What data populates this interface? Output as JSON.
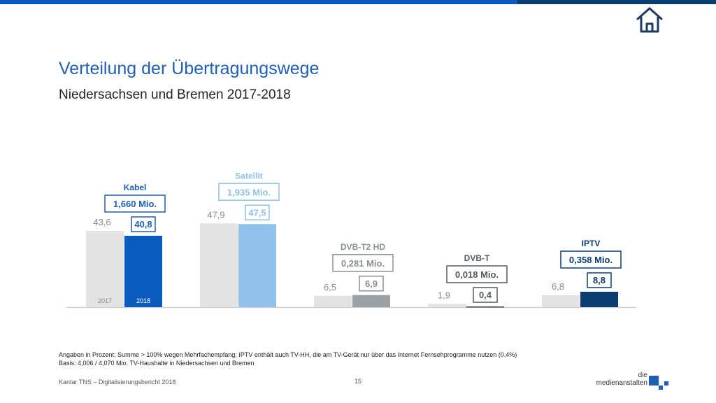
{
  "header": {
    "title": "Verteilung der Übertragungswege",
    "subtitle": "Niedersachsen und Bremen 2017-2018"
  },
  "chart_data": {
    "type": "bar",
    "categories": [
      "Kabel",
      "Satellit",
      "DVB-T2 HD",
      "DVB-T",
      "IPTV"
    ],
    "households": [
      "1,660 Mio.",
      "1,935 Mio.",
      "0,281 Mio.",
      "0,018 Mio.",
      "0,358 Mio."
    ],
    "series": [
      {
        "name": "2017",
        "values": [
          43.6,
          47.9,
          6.5,
          1.9,
          6.8
        ],
        "labels": [
          "43,6",
          "47,9",
          "6,5",
          "1,9",
          "6,8"
        ]
      },
      {
        "name": "2018",
        "values": [
          40.8,
          47.5,
          6.9,
          0.4,
          8.8
        ],
        "labels": [
          "40,8",
          "47,5",
          "6,9",
          "0,4",
          "8,8"
        ]
      }
    ],
    "colors_2017": "#e3e3e3",
    "colors_2018": [
      "#0a5bbf",
      "#8fc1ea",
      "#9aa0a3",
      "#3d4346",
      "#0b3e70"
    ],
    "ylim": [
      0,
      50
    ],
    "grid": false
  },
  "footnote": {
    "line1": "Angaben in Prozent; Summe > 100% wegen Mehrfachempfang; IPTV enthält auch TV-HH, die am TV-Gerät nur über das Internet Fernsehprogramme nutzen (0,4%)",
    "line2": "Basis: 4,006 / 4,070 Mio. TV-Haushalte in Niedersachsen und Bremen"
  },
  "footer": {
    "source": "Kantar TNS – Digitalisierungsbericht 2018",
    "page": "15",
    "logo_line1": "die",
    "logo_line2": "medienanstalten"
  },
  "icons": {
    "home": "home-icon"
  }
}
